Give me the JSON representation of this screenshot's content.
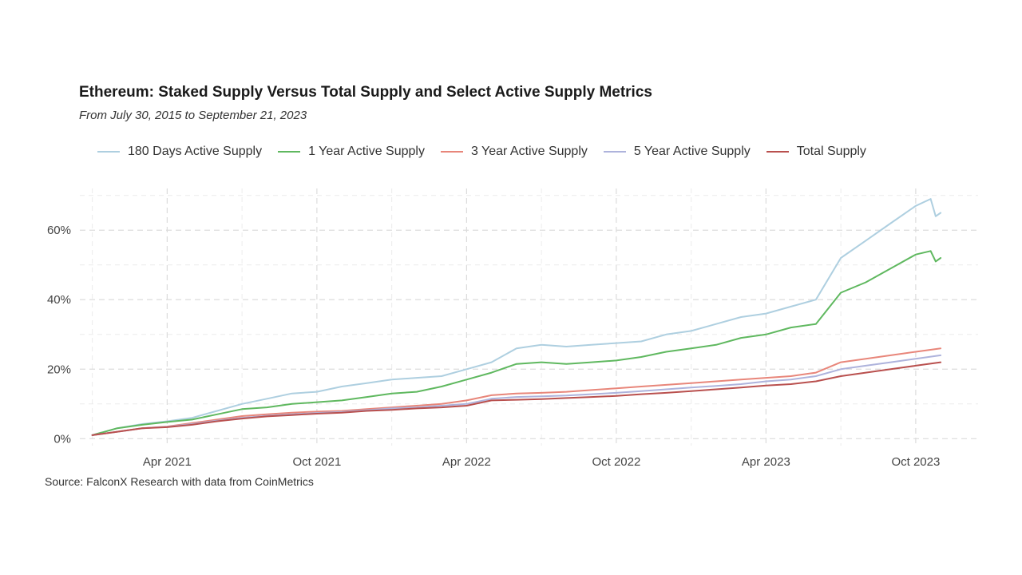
{
  "chart_data": {
    "type": "line",
    "title": "Ethereum: Staked Supply Versus Total Supply and Select Active Supply Metrics",
    "subtitle": "From July 30, 2015 to September 21, 2023",
    "xlabel": "",
    "ylabel": "",
    "x_unit": "months since Dec 2020",
    "xlim": [
      -0.5,
      35.5
    ],
    "ylim": [
      -2,
      72
    ],
    "y_ticks": [
      0,
      20,
      40,
      60
    ],
    "y_tick_labels": [
      "0%",
      "20%",
      "40%",
      "60%"
    ],
    "x_ticks": [
      3,
      9,
      15,
      21,
      27,
      33
    ],
    "x_tick_labels": [
      "Apr 2021",
      "Oct 2021",
      "Apr 2022",
      "Oct 2022",
      "Apr 2023",
      "Oct 2023"
    ],
    "grid": true,
    "legend_position": "top",
    "series": [
      {
        "name": "180 Days Active Supply",
        "color": "#aecfe0",
        "points": [
          [
            0,
            1
          ],
          [
            1,
            3
          ],
          [
            2,
            4.2
          ],
          [
            3,
            5
          ],
          [
            4,
            6
          ],
          [
            5,
            8
          ],
          [
            6,
            10
          ],
          [
            7,
            11.5
          ],
          [
            8,
            13
          ],
          [
            9,
            13.5
          ],
          [
            10,
            15
          ],
          [
            11,
            16
          ],
          [
            12,
            17
          ],
          [
            13,
            17.5
          ],
          [
            14,
            18
          ],
          [
            15,
            20
          ],
          [
            16,
            22
          ],
          [
            17,
            26
          ],
          [
            18,
            27
          ],
          [
            19,
            26.5
          ],
          [
            20,
            27
          ],
          [
            21,
            27.5
          ],
          [
            22,
            28
          ],
          [
            23,
            30
          ],
          [
            24,
            31
          ],
          [
            25,
            33
          ],
          [
            26,
            35
          ],
          [
            27,
            36
          ],
          [
            28,
            38
          ],
          [
            29,
            40
          ],
          [
            30,
            52
          ],
          [
            31,
            57
          ],
          [
            32,
            62
          ],
          [
            33,
            67
          ],
          [
            33.6,
            69
          ],
          [
            33.8,
            64
          ],
          [
            34,
            65
          ]
        ]
      },
      {
        "name": "1 Year Active Supply",
        "color": "#5fb85f",
        "points": [
          [
            0,
            1
          ],
          [
            1,
            3
          ],
          [
            2,
            4
          ],
          [
            3,
            4.8
          ],
          [
            4,
            5.5
          ],
          [
            5,
            7
          ],
          [
            6,
            8.5
          ],
          [
            7,
            9
          ],
          [
            8,
            10
          ],
          [
            9,
            10.5
          ],
          [
            10,
            11
          ],
          [
            11,
            12
          ],
          [
            12,
            13
          ],
          [
            13,
            13.5
          ],
          [
            14,
            15
          ],
          [
            15,
            17
          ],
          [
            16,
            19
          ],
          [
            17,
            21.5
          ],
          [
            18,
            22
          ],
          [
            19,
            21.5
          ],
          [
            20,
            22
          ],
          [
            21,
            22.5
          ],
          [
            22,
            23.5
          ],
          [
            23,
            25
          ],
          [
            24,
            26
          ],
          [
            25,
            27
          ],
          [
            26,
            29
          ],
          [
            27,
            30
          ],
          [
            28,
            32
          ],
          [
            29,
            33
          ],
          [
            30,
            42
          ],
          [
            31,
            45
          ],
          [
            32,
            49
          ],
          [
            33,
            53
          ],
          [
            33.6,
            54
          ],
          [
            33.8,
            51
          ],
          [
            34,
            52
          ]
        ]
      },
      {
        "name": "3 Year Active Supply",
        "color": "#e8867a",
        "points": [
          [
            0,
            1
          ],
          [
            1,
            2
          ],
          [
            2,
            3
          ],
          [
            3,
            3.5
          ],
          [
            4,
            4.5
          ],
          [
            5,
            5.5
          ],
          [
            6,
            6.5
          ],
          [
            7,
            7
          ],
          [
            8,
            7.5
          ],
          [
            9,
            7.8
          ],
          [
            10,
            8
          ],
          [
            11,
            8.5
          ],
          [
            12,
            9
          ],
          [
            13,
            9.5
          ],
          [
            14,
            10
          ],
          [
            15,
            11
          ],
          [
            16,
            12.5
          ],
          [
            17,
            13
          ],
          [
            18,
            13.2
          ],
          [
            19,
            13.5
          ],
          [
            20,
            14
          ],
          [
            21,
            14.5
          ],
          [
            22,
            15
          ],
          [
            23,
            15.5
          ],
          [
            24,
            16
          ],
          [
            25,
            16.5
          ],
          [
            26,
            17
          ],
          [
            27,
            17.5
          ],
          [
            28,
            18
          ],
          [
            29,
            19
          ],
          [
            30,
            22
          ],
          [
            31,
            23
          ],
          [
            32,
            24
          ],
          [
            33,
            25
          ],
          [
            34,
            26
          ]
        ]
      },
      {
        "name": "5 Year Active Supply",
        "color": "#aeb3dc",
        "points": [
          [
            0,
            1
          ],
          [
            1,
            2
          ],
          [
            2,
            3
          ],
          [
            3,
            3.4
          ],
          [
            4,
            4.2
          ],
          [
            5,
            5.2
          ],
          [
            6,
            6
          ],
          [
            7,
            6.6
          ],
          [
            8,
            7
          ],
          [
            9,
            7.4
          ],
          [
            10,
            7.7
          ],
          [
            11,
            8.2
          ],
          [
            12,
            8.7
          ],
          [
            13,
            9
          ],
          [
            14,
            9.5
          ],
          [
            15,
            10
          ],
          [
            16,
            11.5
          ],
          [
            17,
            12
          ],
          [
            18,
            12.2
          ],
          [
            19,
            12.4
          ],
          [
            20,
            12.8
          ],
          [
            21,
            13.2
          ],
          [
            22,
            13.7
          ],
          [
            23,
            14.2
          ],
          [
            24,
            14.7
          ],
          [
            25,
            15.2
          ],
          [
            26,
            15.7
          ],
          [
            27,
            16.5
          ],
          [
            28,
            17
          ],
          [
            29,
            18
          ],
          [
            30,
            20
          ],
          [
            31,
            21
          ],
          [
            32,
            22
          ],
          [
            33,
            23
          ],
          [
            34,
            24
          ]
        ]
      },
      {
        "name": "Total Supply",
        "color": "#b9504e",
        "points": [
          [
            0,
            1
          ],
          [
            1,
            2
          ],
          [
            2,
            3
          ],
          [
            3,
            3.3
          ],
          [
            4,
            4
          ],
          [
            5,
            5
          ],
          [
            6,
            5.8
          ],
          [
            7,
            6.4
          ],
          [
            8,
            6.8
          ],
          [
            9,
            7.2
          ],
          [
            10,
            7.5
          ],
          [
            11,
            8
          ],
          [
            12,
            8.3
          ],
          [
            13,
            8.7
          ],
          [
            14,
            9
          ],
          [
            15,
            9.5
          ],
          [
            16,
            11
          ],
          [
            17,
            11.2
          ],
          [
            18,
            11.4
          ],
          [
            19,
            11.7
          ],
          [
            20,
            12
          ],
          [
            21,
            12.3
          ],
          [
            22,
            12.8
          ],
          [
            23,
            13.2
          ],
          [
            24,
            13.7
          ],
          [
            25,
            14.2
          ],
          [
            26,
            14.7
          ],
          [
            27,
            15.3
          ],
          [
            28,
            15.7
          ],
          [
            29,
            16.5
          ],
          [
            30,
            18
          ],
          [
            31,
            19
          ],
          [
            32,
            20
          ],
          [
            33,
            21
          ],
          [
            34,
            22
          ]
        ]
      }
    ]
  },
  "source": "Source: FalconX Research with data from CoinMetrics"
}
